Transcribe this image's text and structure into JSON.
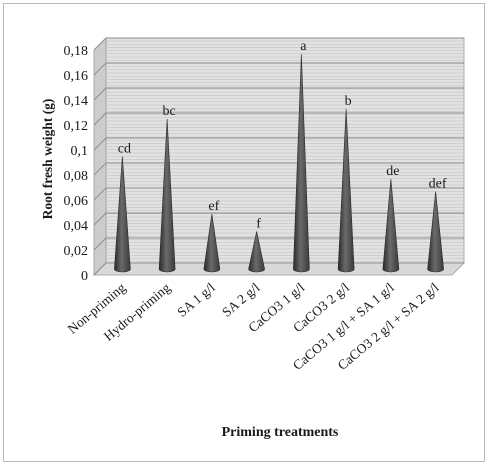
{
  "chart_data": {
    "type": "bar",
    "style": "3d-cone",
    "categories": [
      "Non-priming",
      "Hydro-priming",
      "SA 1 g/l",
      "SA 2 g/l",
      "CaCO3 1 g/l",
      "CaCO3 2 g/l",
      "CaCO3 1 g/l + SA 1 g/l",
      "CaCO3 2 g/l + SA 2 g/l"
    ],
    "values": [
      0.09,
      0.12,
      0.044,
      0.03,
      0.172,
      0.128,
      0.072,
      0.062
    ],
    "letters": [
      "cd",
      "bc",
      "ef",
      "f",
      "a",
      "b",
      "de",
      "def"
    ],
    "xlabel": "Priming treatments",
    "ylabel": "Root fresh weight (g)",
    "ylim": [
      0,
      0.18
    ],
    "yticks": [
      "0",
      "0,02",
      "0,04",
      "0,06",
      "0,08",
      "0,1",
      "0,12",
      "0,14",
      "0,16",
      "0,18"
    ],
    "grid": true,
    "legend": "none",
    "colors": {
      "cone": "#4a4a4a",
      "grid": "#8f8f8f",
      "wall": "#e2e2e2"
    }
  }
}
